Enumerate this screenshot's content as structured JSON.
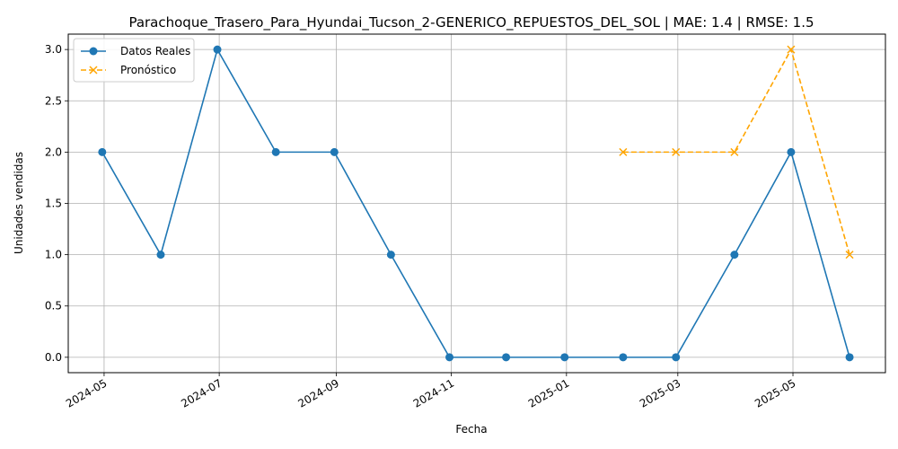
{
  "chart_data": {
    "type": "line",
    "title": "Parachoque_Trasero_Para_Hyundai_Tucson_2-GENERICO_REPUESTOS_DEL_SOL | MAE: 1.4 | RMSE: 1.5",
    "xlabel": "Fecha",
    "ylabel": "Unidades vendidas",
    "x_ticks": [
      "2024-05",
      "2024-07",
      "2024-09",
      "2024-11",
      "2025-01",
      "2025-03",
      "2025-05"
    ],
    "y_ticks": [
      "0.0",
      "0.5",
      "1.0",
      "1.5",
      "2.0",
      "2.5",
      "3.0"
    ],
    "ylim": [
      -0.15,
      3.15
    ],
    "xlim": [
      "2024-04-12",
      "2025-06-19"
    ],
    "grid": true,
    "legend_position": "upper-left",
    "series": [
      {
        "name": "Datos Reales",
        "color": "#1f77b4",
        "marker": "circle",
        "linestyle": "solid",
        "x": [
          "2024-04-30",
          "2024-05-31",
          "2024-06-30",
          "2024-07-31",
          "2024-08-31",
          "2024-09-30",
          "2024-10-31",
          "2024-11-30",
          "2024-12-31",
          "2025-01-31",
          "2025-02-28",
          "2025-03-31",
          "2025-04-30",
          "2025-05-31"
        ],
        "values": [
          2,
          1,
          3,
          2,
          2,
          1,
          0,
          0,
          0,
          0,
          0,
          1,
          2,
          0
        ]
      },
      {
        "name": "Pronóstico",
        "color": "#ffa500",
        "marker": "x",
        "linestyle": "dashed",
        "x": [
          "2025-01-31",
          "2025-02-28",
          "2025-03-31",
          "2025-04-30",
          "2025-05-31"
        ],
        "values": [
          2,
          2,
          2,
          3,
          1
        ]
      }
    ]
  }
}
